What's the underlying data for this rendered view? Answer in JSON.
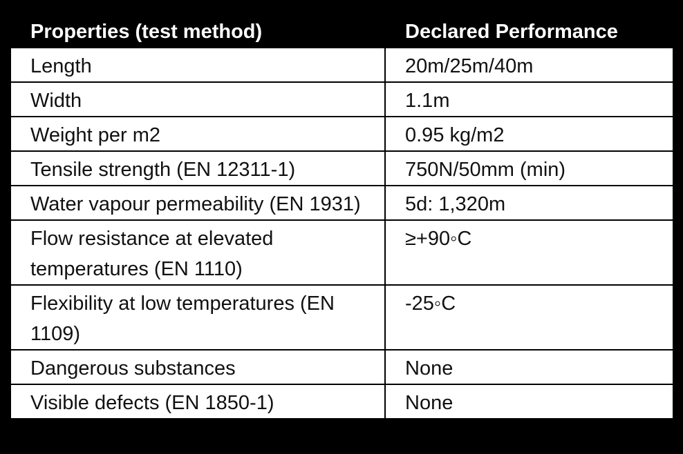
{
  "table": {
    "header": [
      "Properties (test method)",
      "Declared Performance"
    ],
    "rows": [
      [
        "Length",
        "20m/25m/40m"
      ],
      [
        "Width",
        "1.1m"
      ],
      [
        "Weight per m2",
        "0.95 kg/m2"
      ],
      [
        "Tensile strength (EN 12311-1)",
        "750N/50mm (min)"
      ],
      [
        "Water vapour permeability (EN 1931)",
        "5d: 1,320m"
      ],
      [
        "Flow resistance at elevated temperatures (EN 1110)",
        "≥+90◦C"
      ],
      [
        "Flexibility at low temperatures (EN 1109)",
        "-25◦C"
      ],
      [
        "Dangerous substances",
        "None"
      ],
      [
        "Visible defects (EN 1850-1)",
        "None"
      ]
    ]
  }
}
